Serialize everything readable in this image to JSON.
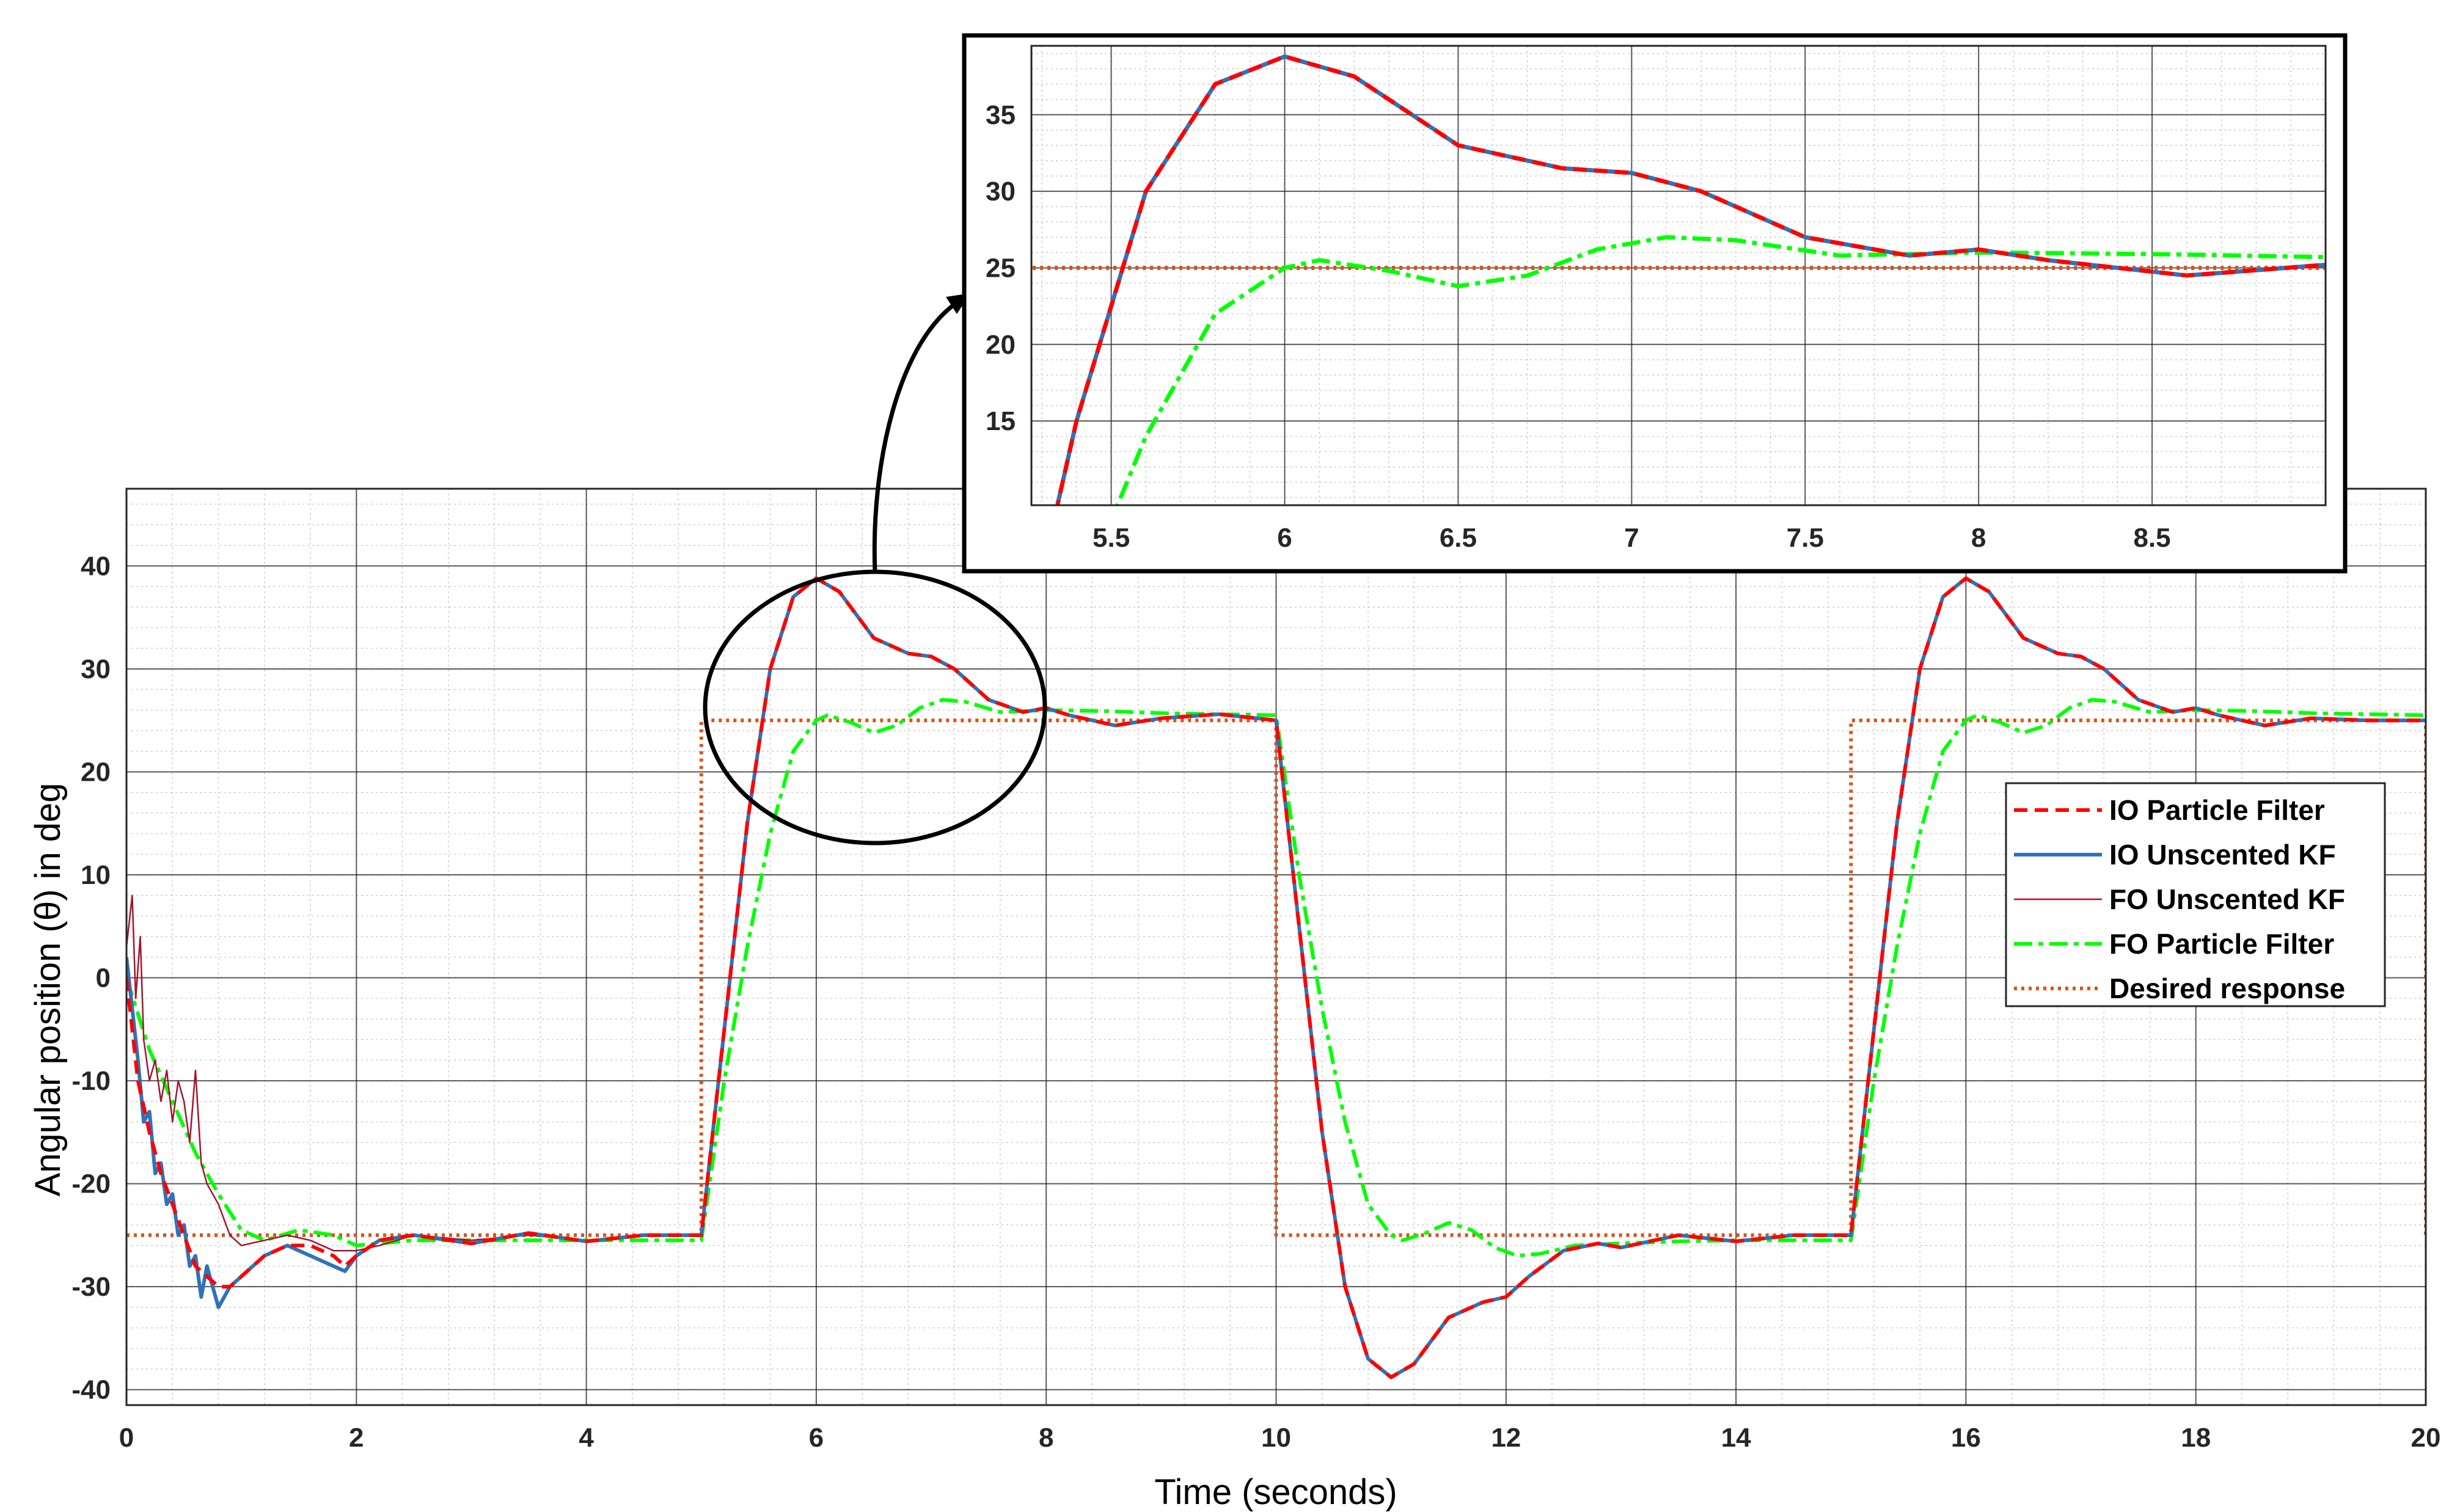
{
  "chart_data": [
    {
      "id": "main",
      "type": "line",
      "xlabel": "Time (seconds)",
      "ylabel": "Angular position (θ) in deg",
      "xlim": [
        0,
        20
      ],
      "ylim": [
        -41.5,
        47.5
      ],
      "xticks": [
        0,
        2,
        4,
        6,
        8,
        10,
        12,
        14,
        16,
        18,
        20
      ],
      "yticks": [
        -40,
        -30,
        -20,
        -10,
        0,
        10,
        20,
        30,
        40
      ],
      "grid": true,
      "minor_grid": true,
      "legend_position": "right",
      "series": [
        {
          "name": "IO Particle Filter",
          "color": "#ff0000",
          "style": "dashed",
          "x": [
            0,
            0.1,
            0.2,
            0.3,
            0.4,
            0.5,
            0.6,
            0.7,
            0.8,
            0.9,
            1.0,
            1.2,
            1.4,
            1.6,
            1.8,
            1.9,
            2.0,
            2.2,
            2.5,
            3.0,
            3.5,
            4.0,
            4.5,
            5.0,
            5.2,
            5.4,
            5.6,
            5.8,
            6.0,
            6.2,
            6.5,
            6.8,
            7.0,
            7.2,
            7.5,
            7.8,
            8.0,
            8.2,
            8.6,
            9.0,
            9.5,
            10.0,
            10.2,
            10.4,
            10.6,
            10.8,
            11.0,
            11.2,
            11.5,
            11.8,
            12.0,
            12.2,
            12.5,
            12.8,
            13.0,
            13.5,
            14.0,
            14.5,
            15.0,
            15.2,
            15.4,
            15.6,
            15.8,
            16.0,
            16.2,
            16.5,
            16.8,
            17.0,
            17.2,
            17.5,
            17.8,
            18.0,
            18.2,
            18.6,
            19.0,
            19.5,
            20.0
          ],
          "y": [
            0,
            -10,
            -15,
            -19,
            -22,
            -25,
            -28,
            -29,
            -30,
            -30,
            -29,
            -27,
            -26,
            -26,
            -27,
            -28,
            -27,
            -25.5,
            -25,
            -25.8,
            -24.8,
            -25.6,
            -25,
            -25,
            -5,
            15,
            30,
            37,
            38.8,
            37.5,
            33,
            31.5,
            31.2,
            30,
            27,
            25.8,
            26.2,
            25.5,
            24.5,
            25.2,
            25.6,
            25,
            5,
            -15,
            -30,
            -37,
            -38.8,
            -37.5,
            -33,
            -31.5,
            -31,
            -29,
            -26.5,
            -25.8,
            -26.2,
            -25,
            -25.6,
            -25,
            -25,
            -5,
            15,
            30,
            37,
            38.8,
            37.5,
            33,
            31.5,
            31.2,
            30,
            27,
            25.8,
            26.2,
            25.5,
            24.5,
            25.2,
            25,
            25
          ]
        },
        {
          "name": "IO Unscented KF",
          "color": "#2f72b9",
          "style": "solid",
          "x": [
            0,
            0.1,
            0.15,
            0.2,
            0.25,
            0.3,
            0.35,
            0.4,
            0.45,
            0.5,
            0.55,
            0.6,
            0.65,
            0.7,
            0.75,
            0.8,
            0.9,
            1.0,
            1.2,
            1.4,
            1.6,
            1.8,
            1.9,
            2.0,
            2.2,
            2.5,
            3.0,
            3.5,
            4.0,
            4.5,
            5.0,
            5.2,
            5.4,
            5.6,
            5.8,
            6.0,
            6.2,
            6.5,
            6.8,
            7.0,
            7.2,
            7.5,
            7.8,
            8.0,
            8.2,
            8.6,
            9.0,
            9.5,
            10.0,
            10.2,
            10.4,
            10.6,
            10.8,
            11.0,
            11.2,
            11.5,
            11.8,
            12.0,
            12.2,
            12.5,
            12.8,
            13.0,
            13.5,
            14.0,
            14.5,
            15.0,
            15.2,
            15.4,
            15.6,
            15.8,
            16.0,
            16.2,
            16.5,
            16.8,
            17.0,
            17.2,
            17.5,
            17.8,
            18.0,
            18.2,
            18.6,
            19.0,
            19.5,
            20.0
          ],
          "y": [
            2,
            -8,
            -14,
            -13,
            -19,
            -18,
            -22,
            -21,
            -25,
            -24,
            -28,
            -27,
            -31,
            -28,
            -30,
            -32,
            -30,
            -29,
            -27,
            -26,
            -27,
            -28,
            -28.5,
            -27,
            -25.5,
            -25,
            -25.8,
            -24.8,
            -25.6,
            -25,
            -25,
            -5,
            15,
            30,
            37,
            38.8,
            37.5,
            33,
            31.5,
            31.2,
            30,
            27,
            25.8,
            26.2,
            25.5,
            24.5,
            25.2,
            25.6,
            25,
            5,
            -15,
            -30,
            -37,
            -38.8,
            -37.5,
            -33,
            -31.5,
            -31,
            -29,
            -26.5,
            -25.8,
            -26.2,
            -25,
            -25.6,
            -25,
            -25,
            -5,
            15,
            30,
            37,
            38.8,
            37.5,
            33,
            31.5,
            31.2,
            30,
            27,
            25.8,
            26.2,
            25.5,
            24.5,
            25.2,
            25,
            25
          ]
        },
        {
          "name": "FO Unscented KF",
          "color": "#a2142f",
          "style": "thin",
          "x": [
            0,
            0.05,
            0.08,
            0.12,
            0.15,
            0.2,
            0.25,
            0.3,
            0.35,
            0.4,
            0.45,
            0.5,
            0.55,
            0.6,
            0.65,
            0.7,
            0.8,
            0.9,
            1.0,
            1.2,
            1.4,
            1.6,
            1.8,
            2.0,
            2.2,
            2.5,
            3.0,
            3.5,
            4.0,
            4.5,
            5.0
          ],
          "y": [
            3,
            8,
            -2,
            4,
            -6,
            -10,
            -8,
            -12,
            -9,
            -14,
            -10,
            -12,
            -16,
            -9,
            -18,
            -20,
            -22,
            -25,
            -26,
            -25.5,
            -25,
            -25.5,
            -26.5,
            -26.5,
            -26,
            -25,
            -25.5,
            -25,
            -25.5,
            -25,
            -25
          ]
        },
        {
          "name": "FO Particle Filter",
          "color": "#00ff00",
          "style": "dashdot",
          "x": [
            0,
            0.2,
            0.4,
            0.6,
            0.8,
            1.0,
            1.2,
            1.5,
            1.8,
            2.0,
            2.5,
            3.0,
            3.5,
            4.0,
            4.5,
            5.0,
            5.2,
            5.4,
            5.6,
            5.8,
            6.0,
            6.1,
            6.3,
            6.5,
            6.7,
            6.9,
            7.1,
            7.3,
            7.6,
            8.0,
            8.5,
            9.0,
            9.5,
            10.0,
            10.2,
            10.4,
            10.6,
            10.8,
            11.0,
            11.1,
            11.3,
            11.5,
            11.7,
            11.9,
            12.1,
            12.3,
            12.6,
            13.0,
            13.5,
            14.0,
            14.5,
            15.0,
            15.2,
            15.4,
            15.6,
            15.8,
            16.0,
            16.1,
            16.3,
            16.5,
            16.7,
            16.9,
            17.1,
            17.3,
            17.6,
            18.0,
            18.5,
            19.0,
            19.5,
            20.0
          ],
          "y": [
            0,
            -7,
            -12,
            -17,
            -21,
            -24.5,
            -25.5,
            -24.5,
            -25,
            -26,
            -25.5,
            -25.5,
            -25.5,
            -25.5,
            -25.5,
            -25.5,
            -10,
            3,
            14,
            22,
            25,
            25.5,
            24.8,
            23.8,
            24.5,
            26.2,
            27,
            26.8,
            25.8,
            26,
            25.9,
            25.7,
            25.6,
            25.5,
            10,
            -3,
            -14,
            -22,
            -25,
            -25.5,
            -24.8,
            -23.8,
            -24.5,
            -26.2,
            -27,
            -26.8,
            -26,
            -25.8,
            -25.6,
            -25.5,
            -25.5,
            -25.5,
            -10,
            3,
            14,
            22,
            25,
            25.5,
            24.8,
            23.8,
            24.5,
            26.2,
            27,
            26.8,
            25.8,
            26,
            25.9,
            25.7,
            25.6,
            25.5
          ]
        },
        {
          "name": "Desired response",
          "color": "#d95319",
          "style": "dotted",
          "x": [
            0,
            5,
            5,
            10,
            10,
            15,
            15,
            20,
            20
          ],
          "y": [
            -25,
            -25,
            25,
            25,
            -25,
            -25,
            25,
            25,
            -25
          ]
        }
      ]
    },
    {
      "id": "inset",
      "type": "line",
      "xlim": [
        5.27,
        9.0
      ],
      "ylim": [
        9.5,
        39.5
      ],
      "xticks": [
        5.5,
        6,
        6.5,
        7,
        7.5,
        8,
        8.5
      ],
      "yticks": [
        15,
        20,
        25,
        30,
        35
      ],
      "grid": true,
      "minor_grid": true,
      "zoom_of_main": {
        "xlim": [
          5.0,
          8.0
        ],
        "ylim": [
          13,
          40
        ]
      }
    }
  ],
  "xtick_labels": [
    "0",
    "2",
    "4",
    "6",
    "8",
    "10",
    "12",
    "14",
    "16",
    "18",
    "20"
  ],
  "ytick_labels": [
    "-40",
    "-30",
    "-20",
    "-10",
    "0",
    "10",
    "20",
    "30",
    "40"
  ],
  "inset_xtick_labels": [
    "5.5",
    "6",
    "6.5",
    "7",
    "7.5",
    "8",
    "8.5"
  ],
  "inset_ytick_labels": [
    "15",
    "20",
    "25",
    "30",
    "35"
  ]
}
